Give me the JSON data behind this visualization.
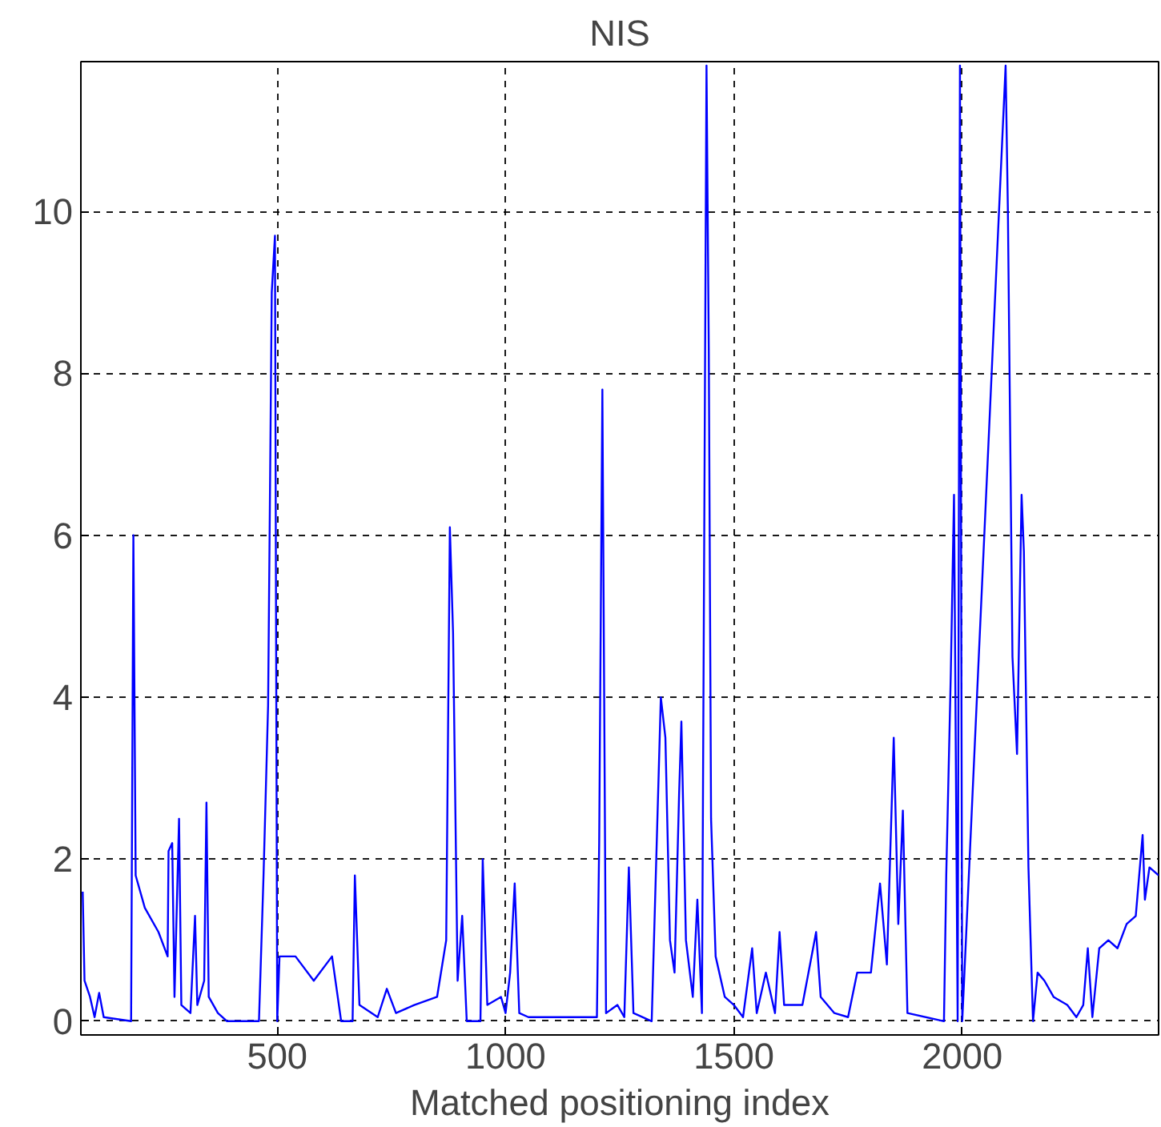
{
  "chart_data": {
    "type": "line",
    "title": "NIS",
    "xlabel": "Matched positioning index",
    "x": [
      74,
      78,
      90,
      100,
      110,
      120,
      180,
      185,
      190,
      210,
      240,
      260,
      262,
      270,
      275,
      285,
      290,
      310,
      320,
      325,
      340,
      345,
      350,
      370,
      390,
      460,
      470,
      480,
      488,
      495,
      500,
      505,
      540,
      580,
      620,
      640,
      665,
      670,
      680,
      720,
      740,
      760,
      800,
      850,
      870,
      878,
      885,
      895,
      905,
      915,
      945,
      950,
      960,
      990,
      1000,
      1010,
      1020,
      1030,
      1050,
      1200,
      1205,
      1212,
      1220,
      1245,
      1260,
      1270,
      1280,
      1320,
      1340,
      1350,
      1360,
      1370,
      1380,
      1385,
      1395,
      1410,
      1420,
      1430,
      1440,
      1445,
      1450,
      1460,
      1480,
      1500,
      1520,
      1540,
      1550,
      1570,
      1590,
      1600,
      1610,
      1650,
      1680,
      1690,
      1720,
      1750,
      1770,
      1800,
      1820,
      1835,
      1850,
      1860,
      1870,
      1880,
      1960,
      1965,
      1975,
      1982,
      1990,
      1995,
      2000,
      2095,
      2100,
      2110,
      2120,
      2130,
      2135,
      2145,
      2155,
      2165,
      2180,
      2200,
      2230,
      2250,
      2265,
      2275,
      2285,
      2300,
      2320,
      2340,
      2360,
      2380,
      2395,
      2400,
      2410,
      2430
    ],
    "series": [
      {
        "color": "#0000ff",
        "values": [
          1.6,
          0.5,
          0.3,
          0.05,
          0.35,
          0.05,
          0.0,
          6.0,
          1.8,
          1.4,
          1.1,
          0.8,
          2.1,
          2.2,
          0.3,
          2.5,
          0.2,
          0.1,
          1.3,
          0.2,
          0.5,
          2.7,
          0.3,
          0.1,
          0.0,
          0.0,
          1.8,
          3.9,
          9.0,
          9.7,
          0.0,
          0.8,
          0.8,
          0.5,
          0.8,
          0.0,
          0.0,
          1.8,
          0.2,
          0.05,
          0.4,
          0.1,
          0.2,
          0.3,
          1.0,
          6.1,
          4.8,
          0.5,
          1.3,
          0.0,
          0.0,
          2.0,
          0.2,
          0.3,
          0.1,
          0.6,
          1.7,
          0.1,
          0.05,
          0.05,
          2.2,
          7.8,
          0.1,
          0.2,
          0.05,
          1.9,
          0.1,
          0.0,
          4.0,
          3.5,
          1.0,
          0.6,
          2.8,
          3.7,
          1.0,
          0.3,
          1.5,
          0.1,
          11.8,
          8.3,
          2.5,
          0.8,
          0.3,
          0.2,
          0.05,
          0.9,
          0.1,
          0.6,
          0.1,
          1.1,
          0.2,
          0.2,
          1.1,
          0.3,
          0.1,
          0.05,
          0.6,
          0.6,
          1.7,
          0.7,
          3.5,
          1.2,
          2.6,
          0.1,
          0.0,
          1.8,
          4.3,
          6.5,
          0.0,
          11.8,
          0.0,
          11.8,
          10.0,
          4.5,
          3.3,
          6.5,
          5.8,
          1.9,
          0.0,
          0.6,
          0.5,
          0.3,
          0.2,
          0.05,
          0.2,
          0.9,
          0.05,
          0.9,
          1.0,
          0.9,
          1.2,
          1.3,
          2.3,
          1.5,
          1.9,
          1.8
        ]
      }
    ],
    "xlim": [
      70,
      2430
    ],
    "ylim": [
      -0.17,
      11.85
    ],
    "xticks": [
      500,
      1000,
      1500,
      2000
    ],
    "yticks": [
      0,
      2,
      4,
      6,
      8,
      10
    ],
    "grid": true,
    "line_style": "solid",
    "marker": "none"
  }
}
